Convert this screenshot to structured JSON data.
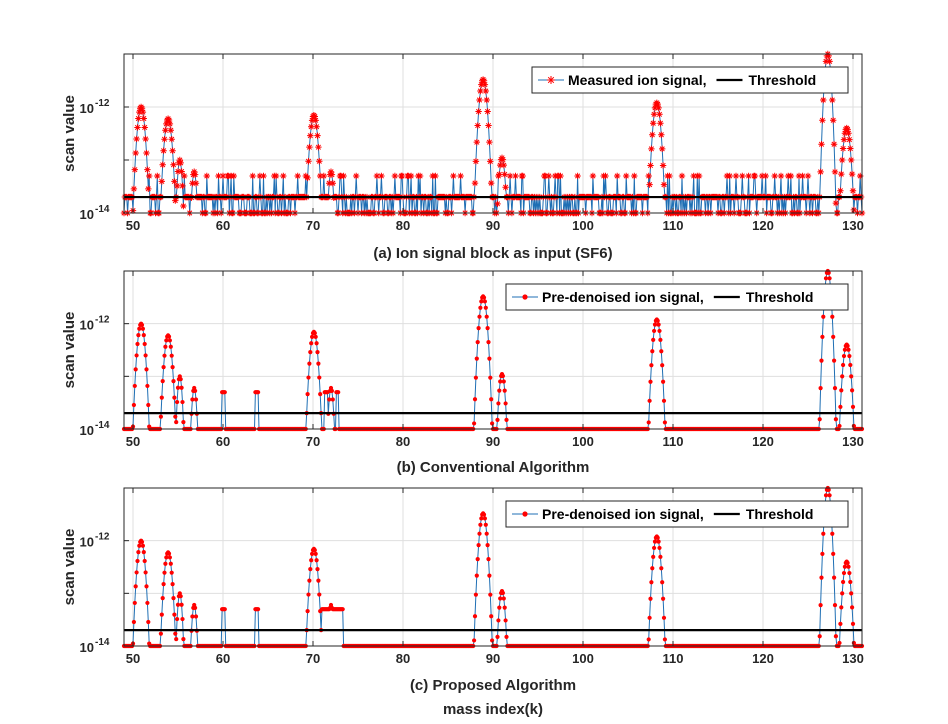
{
  "chart_data": [
    {
      "type": "line",
      "panel_label": "(a) Ion signal block as input (SF6)",
      "xlabel": "",
      "ylabel": "scan value",
      "xlim": [
        49,
        131
      ],
      "y_scale": "log",
      "ylim_exponents": [
        -14,
        -11
      ],
      "x_ticks": [
        50,
        60,
        70,
        80,
        90,
        100,
        110,
        120,
        130
      ],
      "y_ticks": [
        {
          "value": 1e-14,
          "label": "10",
          "exp": "-14"
        },
        {
          "value": 1e-12,
          "label": "10",
          "exp": "-12"
        }
      ],
      "grid": true,
      "legend_position": "top-right",
      "series_color": "#1f6fb4",
      "marker_color": "#ff0000",
      "marker": "star",
      "x_step": 0.1,
      "series": [
        {
          "name": "Measured ion signal,",
          "peaks": [
            {
              "center": 50.9,
              "width": 0.3,
              "amp": 1e-12
            },
            {
              "center": 53.9,
              "width": 0.3,
              "amp": 6e-13
            },
            {
              "center": 55.2,
              "width": 0.2,
              "amp": 1e-13
            },
            {
              "center": 56.8,
              "width": 0.2,
              "amp": 6e-14
            },
            {
              "center": 70.1,
              "width": 0.3,
              "amp": 7e-13
            },
            {
              "center": 72.0,
              "width": 0.2,
              "amp": 6e-14
            },
            {
              "center": 88.9,
              "width": 0.3,
              "amp": 3.3e-12
            },
            {
              "center": 91.0,
              "width": 0.25,
              "amp": 1.1e-13
            },
            {
              "center": 108.2,
              "width": 0.3,
              "amp": 1.2e-12
            },
            {
              "center": 127.2,
              "width": 0.25,
              "amp": 1e-11
            },
            {
              "center": 129.3,
              "width": 0.3,
              "amp": 4e-13
            }
          ],
          "floor_levels": [
            1e-14,
            2e-14,
            5e-14
          ]
        },
        {
          "name": "Threshold",
          "value": 2e-14,
          "color": "#000000"
        }
      ]
    },
    {
      "type": "line",
      "panel_label": "(b) Conventional Algorithm",
      "xlabel": "",
      "ylabel": "scan value",
      "xlim": [
        49,
        131
      ],
      "y_scale": "log",
      "ylim_exponents": [
        -14,
        -11
      ],
      "x_ticks": [
        50,
        60,
        70,
        80,
        90,
        100,
        110,
        120,
        130
      ],
      "y_ticks": [
        {
          "value": 1e-14,
          "label": "10",
          "exp": "-14"
        },
        {
          "value": 1e-12,
          "label": "10",
          "exp": "-12"
        }
      ],
      "grid": true,
      "legend_position": "top-right",
      "series_color": "#1f6fb4",
      "marker_color": "#ff0000",
      "marker": "dot",
      "x_step": 0.1,
      "series": [
        {
          "name": "Pre-denoised ion signal,",
          "peaks": [
            {
              "center": 50.9,
              "width": 0.3,
              "amp": 1e-12
            },
            {
              "center": 53.9,
              "width": 0.3,
              "amp": 6e-13
            },
            {
              "center": 55.2,
              "width": 0.2,
              "amp": 1e-13
            },
            {
              "center": 56.8,
              "width": 0.2,
              "amp": 6e-14
            },
            {
              "center": 70.1,
              "width": 0.3,
              "amp": 7e-13
            },
            {
              "center": 72.0,
              "width": 0.2,
              "amp": 6e-14
            },
            {
              "center": 88.9,
              "width": 0.3,
              "amp": 3.3e-12
            },
            {
              "center": 91.0,
              "width": 0.25,
              "amp": 1.1e-13
            },
            {
              "center": 108.2,
              "width": 0.3,
              "amp": 1.2e-12
            },
            {
              "center": 127.2,
              "width": 0.25,
              "amp": 1e-11
            },
            {
              "center": 129.3,
              "width": 0.3,
              "amp": 4e-13
            }
          ],
          "plateaus": [
            {
              "start": 59.9,
              "end": 60.2,
              "value": 5e-14
            },
            {
              "start": 63.6,
              "end": 63.9,
              "value": 5e-14
            },
            {
              "start": 71.3,
              "end": 71.6,
              "value": 5e-14
            },
            {
              "start": 72.6,
              "end": 72.8,
              "value": 5e-14
            }
          ],
          "floor": 1e-14
        },
        {
          "name": "Threshold",
          "value": 2e-14,
          "color": "#000000"
        }
      ]
    },
    {
      "type": "line",
      "panel_label": "(c) Proposed Algorithm",
      "xlabel": "mass index(k)",
      "ylabel": "scan value",
      "xlim": [
        49,
        131
      ],
      "y_scale": "log",
      "ylim_exponents": [
        -14,
        -11
      ],
      "x_ticks": [
        50,
        60,
        70,
        80,
        90,
        100,
        110,
        120,
        130
      ],
      "y_ticks": [
        {
          "value": 1e-14,
          "label": "10",
          "exp": "-14"
        },
        {
          "value": 1e-12,
          "label": "10",
          "exp": "-12"
        }
      ],
      "grid": true,
      "legend_position": "top-right",
      "series_color": "#1f6fb4",
      "marker_color": "#ff0000",
      "marker": "dot",
      "x_step": 0.1,
      "series": [
        {
          "name": "Pre-denoised ion signal,",
          "peaks": [
            {
              "center": 50.9,
              "width": 0.3,
              "amp": 1e-12
            },
            {
              "center": 53.9,
              "width": 0.3,
              "amp": 6e-13
            },
            {
              "center": 55.2,
              "width": 0.2,
              "amp": 1e-13
            },
            {
              "center": 56.8,
              "width": 0.2,
              "amp": 6e-14
            },
            {
              "center": 70.1,
              "width": 0.3,
              "amp": 7e-13
            },
            {
              "center": 72.0,
              "width": 0.2,
              "amp": 6e-14
            },
            {
              "center": 88.9,
              "width": 0.3,
              "amp": 3.3e-12
            },
            {
              "center": 91.0,
              "width": 0.25,
              "amp": 1.1e-13
            },
            {
              "center": 108.2,
              "width": 0.3,
              "amp": 1.2e-12
            },
            {
              "center": 127.2,
              "width": 0.25,
              "amp": 1e-11
            },
            {
              "center": 129.3,
              "width": 0.3,
              "amp": 4e-13
            }
          ],
          "plateaus": [
            {
              "start": 59.9,
              "end": 60.2,
              "value": 5e-14
            },
            {
              "start": 63.6,
              "end": 63.9,
              "value": 5e-14
            },
            {
              "start": 71.0,
              "end": 73.3,
              "value": 5e-14
            }
          ],
          "floor": 1e-14
        },
        {
          "name": "Threshold",
          "value": 2e-14,
          "color": "#000000"
        }
      ]
    }
  ]
}
